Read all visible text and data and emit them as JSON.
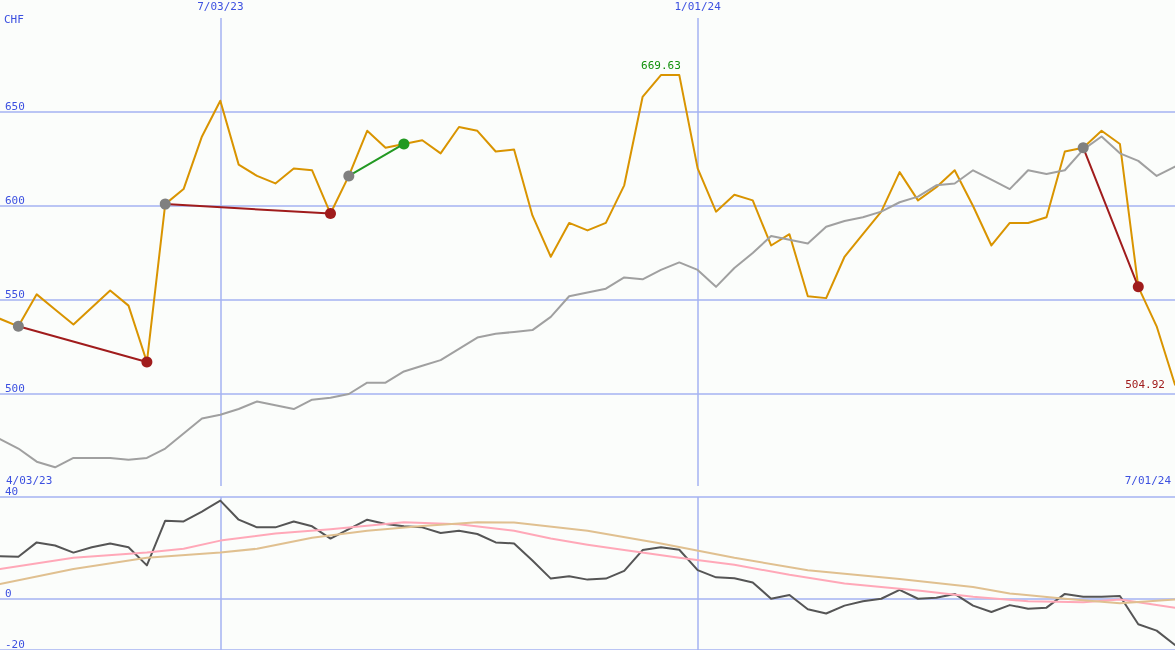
{
  "chart_data": [
    {
      "type": "line",
      "ylabel": "CHF",
      "x": [
        "2023-04-10",
        "2023-04-17",
        "2023-04-24",
        "2023-05-01",
        "2023-05-08",
        "2023-05-15",
        "2023-05-22",
        "2023-05-29",
        "2023-06-05",
        "2023-06-12",
        "2023-06-19",
        "2023-06-26",
        "2023-07-03",
        "2023-07-10",
        "2023-07-17",
        "2023-07-24",
        "2023-07-31",
        "2023-08-07",
        "2023-08-14",
        "2023-08-21",
        "2023-08-28",
        "2023-09-04",
        "2023-09-11",
        "2023-09-18",
        "2023-09-25",
        "2023-10-02",
        "2023-10-09",
        "2023-10-16",
        "2023-10-23",
        "2023-10-30",
        "2023-11-06",
        "2023-11-13",
        "2023-11-20",
        "2023-11-27",
        "2023-12-04",
        "2023-12-11",
        "2023-12-18",
        "2023-12-25",
        "2024-01-01",
        "2024-01-08",
        "2024-01-15",
        "2024-01-22",
        "2024-01-29",
        "2024-02-05",
        "2024-02-12",
        "2024-02-19",
        "2024-02-26",
        "2024-03-04",
        "2024-03-11",
        "2024-03-18",
        "2024-03-25",
        "2024-04-01",
        "2024-04-08",
        "2024-04-15",
        "2024-04-22",
        "2024-04-29",
        "2024-05-06",
        "2024-05-13",
        "2024-05-20",
        "2024-05-27",
        "2024-06-03",
        "2024-06-10",
        "2024-06-17",
        "2024-06-24",
        "2024-07-01"
      ],
      "xlim": [
        "2023-04-10",
        "2024-07-01"
      ],
      "xticks": [
        {
          "value": "2023-07-03",
          "label": "7/03/23"
        },
        {
          "value": "2024-01-01",
          "label": "1/01/24"
        }
      ],
      "ylim": [
        450,
        700
      ],
      "yticks": [
        500,
        550,
        600,
        650
      ],
      "grid": true,
      "marker": "none",
      "annotations": [
        "4/03/23",
        "7/01/24",
        {
          "text": "669.63",
          "x": "2023-12-18",
          "y": 669.63
        },
        {
          "text": "504.92",
          "x": "2024-07-01",
          "y": 504.92
        }
      ],
      "series": [
        {
          "color": "#d99400",
          "values": [
            540,
            536,
            553,
            545,
            537,
            546,
            555,
            547,
            517,
            601,
            609,
            637,
            656,
            622,
            616,
            612,
            620,
            619,
            596,
            616,
            640,
            631,
            633,
            635,
            628,
            642,
            640,
            629,
            630,
            595,
            573,
            591,
            587,
            591,
            611,
            658,
            669.63,
            669.63,
            620,
            597,
            606,
            603,
            579,
            585,
            552,
            551,
            573,
            585,
            597,
            618,
            603,
            610,
            619,
            600,
            579,
            591,
            591,
            594,
            629,
            631,
            640,
            633,
            557,
            536,
            504.92
          ]
        },
        {
          "color": "#a0a0a0",
          "values": [
            476,
            471,
            464,
            461,
            466,
            466,
            466,
            465,
            466,
            471,
            479,
            487,
            489,
            492,
            496,
            494,
            492,
            497,
            498,
            500,
            506,
            506,
            512,
            515,
            518,
            524,
            530,
            532,
            533,
            534,
            541,
            552,
            554,
            556,
            562,
            561,
            566,
            570,
            566,
            557,
            567,
            575,
            584,
            582,
            580,
            589,
            592,
            594,
            597,
            602,
            605,
            611,
            612,
            619,
            614,
            609,
            619,
            617,
            619,
            630,
            637,
            628,
            624,
            616,
            621
          ]
        },
        {
          "type": "line",
          "marker": "circle",
          "x": [
            "2023-04-17",
            "2023-06-05"
          ],
          "values": [
            536,
            517
          ],
          "color": "#a01c1c",
          "colors": [
            "#808080",
            "#a01c1c"
          ]
        },
        {
          "type": "line",
          "marker": "circle",
          "x": [
            "2023-06-12",
            "2023-08-14"
          ],
          "values": [
            601,
            596
          ],
          "color": "#a01c1c",
          "colors": [
            "#808080",
            "#a01c1c"
          ]
        },
        {
          "type": "line",
          "marker": "circle",
          "x": [
            "2023-08-21",
            "2023-09-11"
          ],
          "values": [
            616,
            633
          ],
          "color": "#229922",
          "colors": [
            "#808080",
            "#229922"
          ]
        },
        {
          "type": "line",
          "marker": "circle",
          "x": [
            "2024-05-27",
            "2024-06-17"
          ],
          "values": [
            631,
            557
          ],
          "color": "#a01c1c",
          "colors": [
            "#808080",
            "#a01c1c"
          ]
        }
      ]
    },
    {
      "type": "line",
      "x": [
        "2023-04-10",
        "2023-04-17",
        "2023-04-24",
        "2023-05-01",
        "2023-05-08",
        "2023-05-15",
        "2023-05-22",
        "2023-05-29",
        "2023-06-05",
        "2023-06-12",
        "2023-06-19",
        "2023-06-26",
        "2023-07-03",
        "2023-07-10",
        "2023-07-17",
        "2023-07-24",
        "2023-07-31",
        "2023-08-07",
        "2023-08-14",
        "2023-08-21",
        "2023-08-28",
        "2023-09-04",
        "2023-09-11",
        "2023-09-18",
        "2023-09-25",
        "2023-10-02",
        "2023-10-09",
        "2023-10-16",
        "2023-10-23",
        "2023-10-30",
        "2023-11-06",
        "2023-11-13",
        "2023-11-20",
        "2023-11-27",
        "2023-12-04",
        "2023-12-11",
        "2023-12-18",
        "2023-12-25",
        "2024-01-01",
        "2024-01-08",
        "2024-01-15",
        "2024-01-22",
        "2024-01-29",
        "2024-02-05",
        "2024-02-12",
        "2024-02-19",
        "2024-02-26",
        "2024-03-04",
        "2024-03-11",
        "2024-03-18",
        "2024-03-25",
        "2024-04-01",
        "2024-04-08",
        "2024-04-15",
        "2024-04-22",
        "2024-04-29",
        "2024-05-06",
        "2024-05-13",
        "2024-05-20",
        "2024-05-27",
        "2024-06-03",
        "2024-06-10",
        "2024-06-17",
        "2024-06-24",
        "2024-07-01"
      ],
      "xlim": [
        "2023-04-10",
        "2024-07-01"
      ],
      "xticks": [
        {
          "value": "2023-07-03",
          "label": null
        },
        {
          "value": "2024-01-01",
          "label": null
        }
      ],
      "ylim": [
        -20,
        40
      ],
      "yticks": [
        -20,
        0,
        40
      ],
      "grid": true,
      "marker": "none",
      "tick_labels": "y",
      "series": [
        {
          "color": "#555555",
          "values": [
            16.8,
            16.6,
            22.2,
            21,
            18.2,
            20.3,
            21.8,
            20.3,
            13.2,
            30.7,
            30.4,
            34.3,
            38.6,
            31.1,
            28.1,
            28.1,
            30.4,
            28.5,
            23.7,
            27.4,
            31.1,
            29.4,
            28.5,
            28.1,
            25.9,
            26.8,
            25.5,
            22.2,
            21.8,
            15.1,
            8,
            8.9,
            7.6,
            8,
            11,
            19.2,
            20.3,
            19.3,
            11.3,
            8.5,
            8.1,
            6.5,
            0.1,
            1.6,
            -4,
            -5.7,
            -2.6,
            -0.9,
            0.1,
            3.6,
            0.1,
            0.5,
            2,
            -2.6,
            -5.1,
            -2.4,
            -3.8,
            -3.4,
            2,
            0.9,
            0.9,
            1.2,
            -9.9,
            -12.4,
            -18
          ]
        },
        {
          "color": "#ffa8b8",
          "x": [
            "2023-04-10",
            "2023-05-08",
            "2023-06-05",
            "2023-06-19",
            "2023-07-03",
            "2023-07-24",
            "2023-08-14",
            "2023-09-11",
            "2023-10-02",
            "2023-10-23",
            "2023-11-06",
            "2023-11-20",
            "2023-12-04",
            "2023-12-25",
            "2024-01-15",
            "2024-02-05",
            "2024-02-26",
            "2024-03-25",
            "2024-04-15",
            "2024-05-06",
            "2024-05-27",
            "2024-06-10",
            "2024-07-01"
          ],
          "values": [
            11.8,
            16.2,
            18.2,
            19.7,
            22.9,
            25.7,
            27.4,
            30.1,
            29.3,
            26.8,
            23.7,
            21.3,
            19.2,
            16.2,
            13.4,
            9.5,
            6.1,
            3.3,
            0.9,
            -0.9,
            -1.3,
            -0.2,
            -3.4
          ]
        },
        {
          "color": "#e0c090",
          "x": [
            "2023-04-10",
            "2023-05-08",
            "2023-06-05",
            "2023-07-03",
            "2023-07-17",
            "2023-08-07",
            "2023-08-28",
            "2023-09-18",
            "2023-10-09",
            "2023-10-23",
            "2023-11-20",
            "2023-12-18",
            "2024-01-15",
            "2024-02-12",
            "2024-03-18",
            "2024-04-15",
            "2024-04-29",
            "2024-05-20",
            "2024-06-10",
            "2024-07-01"
          ],
          "values": [
            5.9,
            11.8,
            16.2,
            18.2,
            19.7,
            24,
            26.8,
            28.6,
            30.1,
            30,
            26.8,
            21.8,
            16.2,
            11.3,
            7.8,
            4.7,
            2.2,
            0.1,
            -1.7,
            -0.2
          ]
        }
      ]
    }
  ]
}
